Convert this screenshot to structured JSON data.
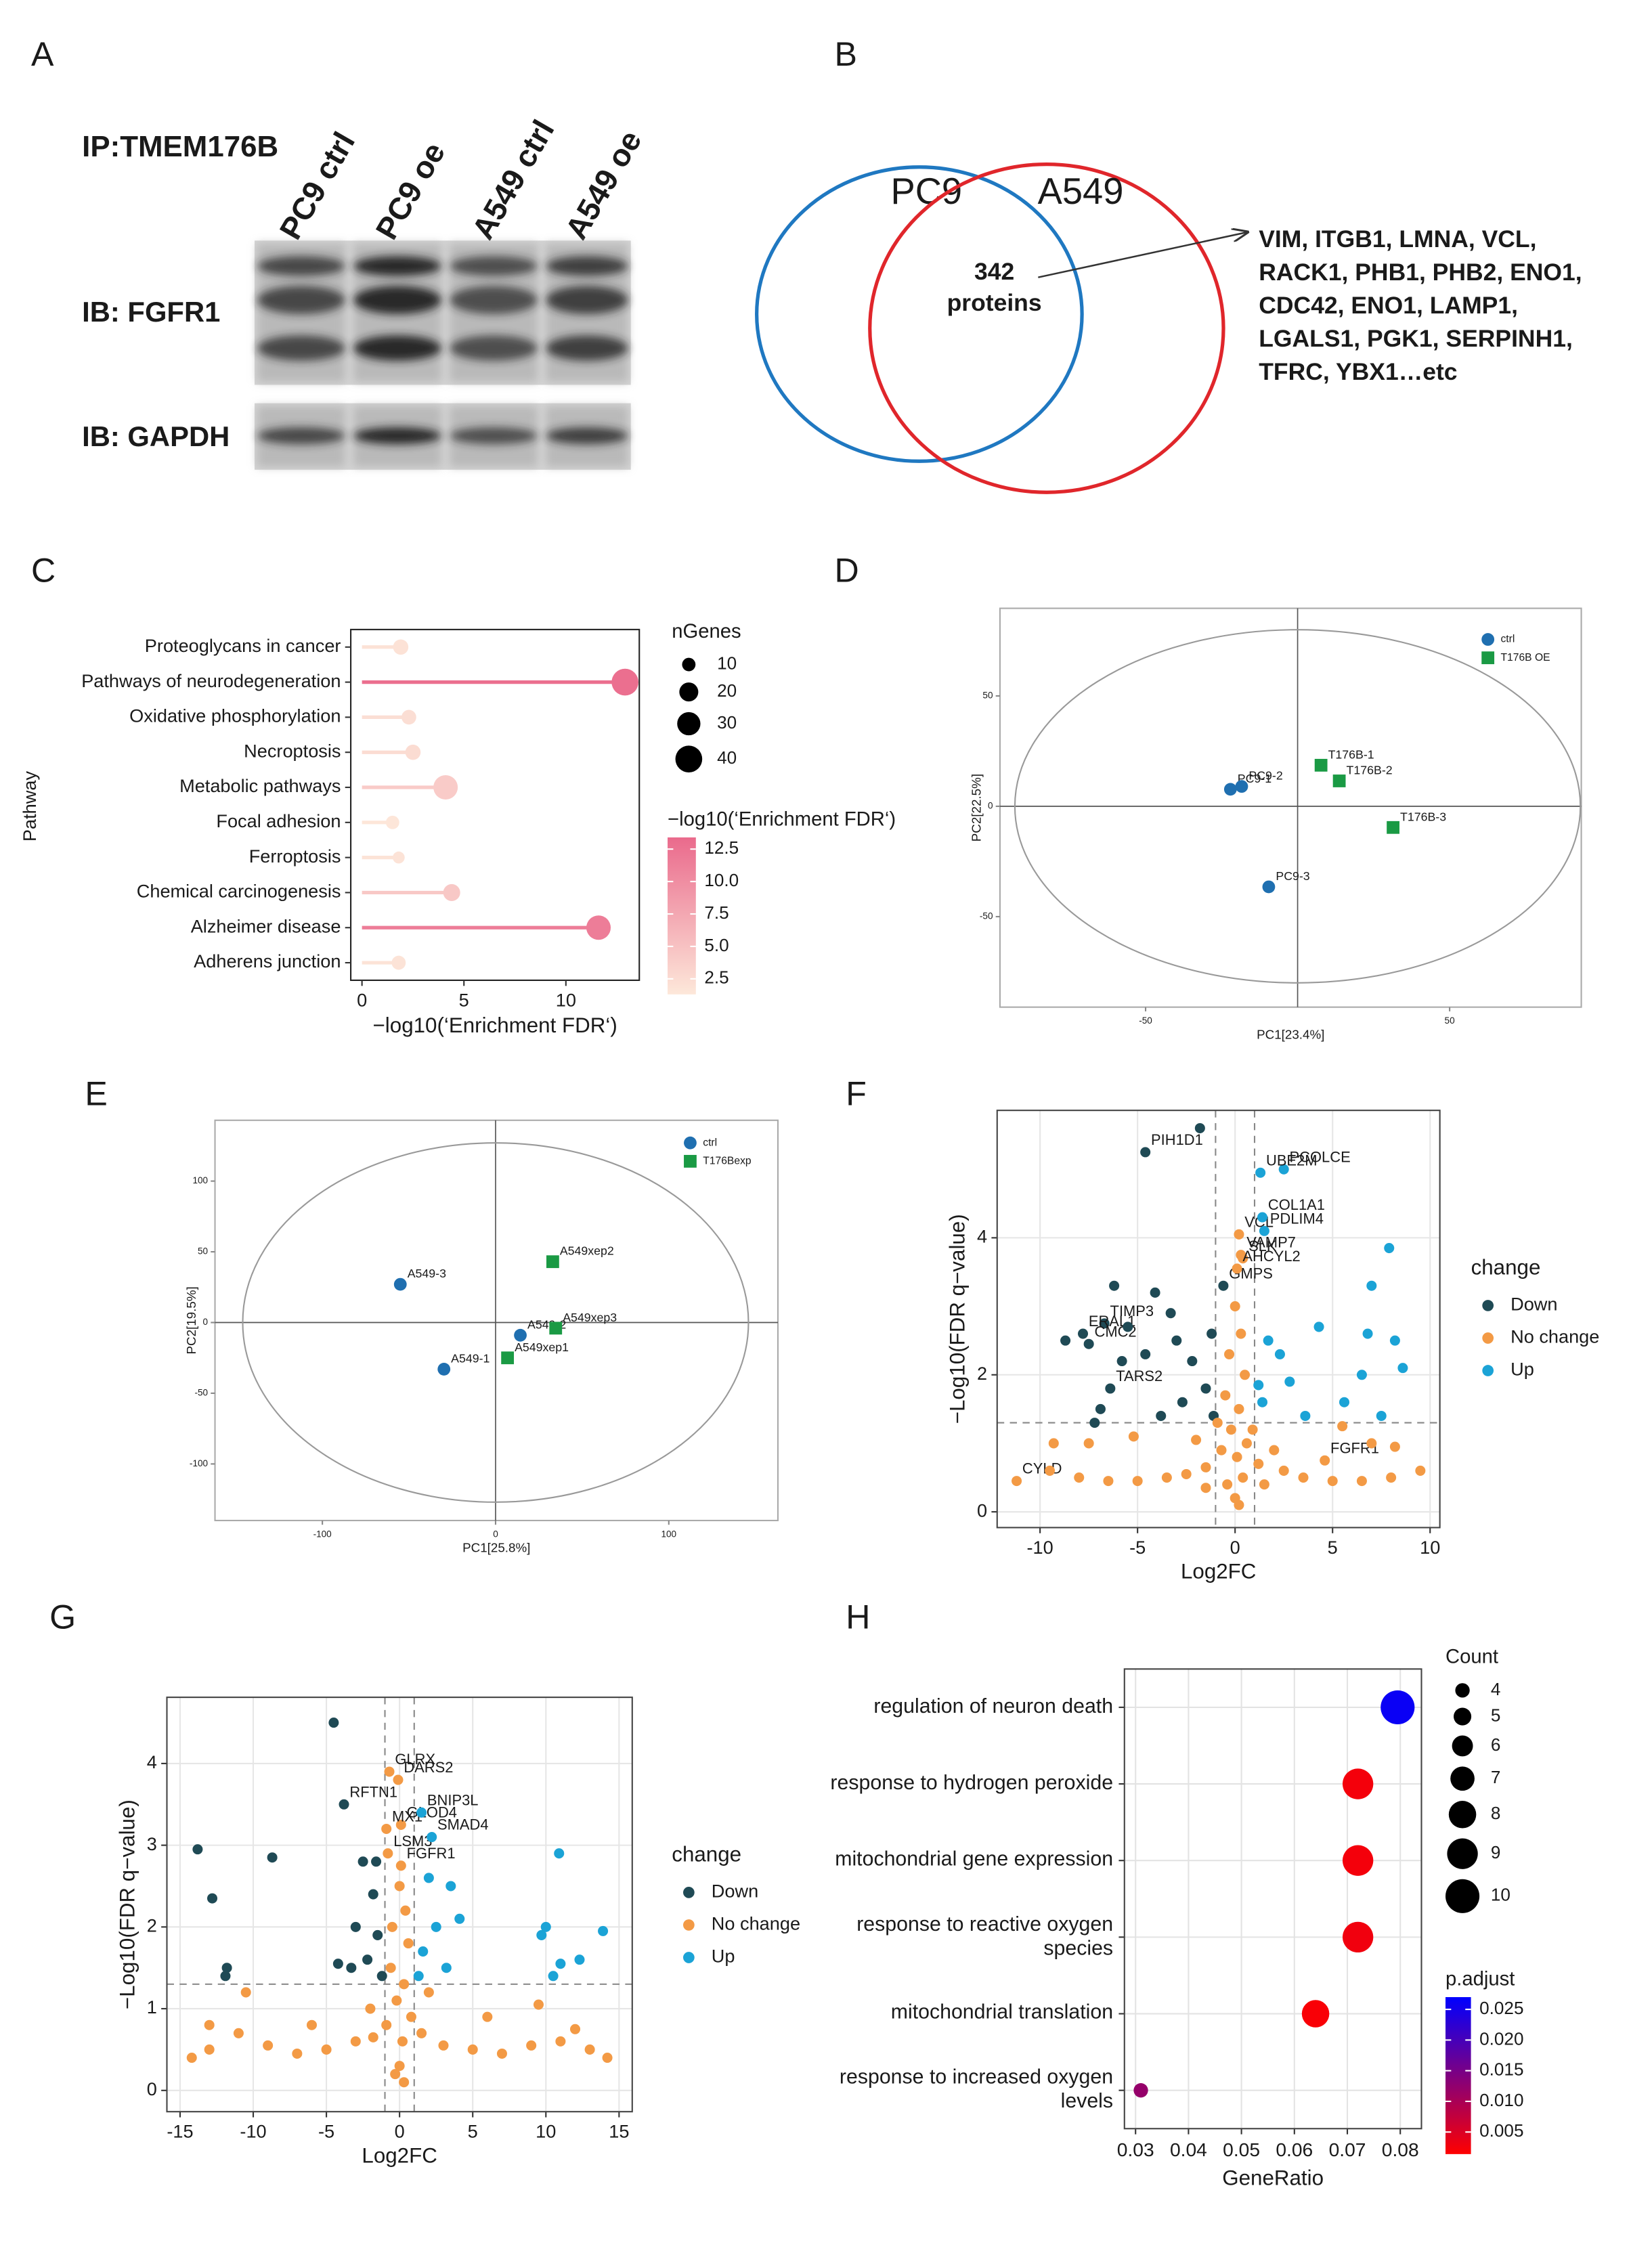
{
  "chart_data": [
    {
      "type": "blot",
      "panel": "A",
      "title": "IP:TMEM176B",
      "lanes": [
        "PC9 ctrl",
        "PC9 oe",
        "A549 ctrl",
        "A549 oe"
      ],
      "rows": [
        "IB: FGFR1",
        "IB: GAPDH"
      ]
    },
    {
      "type": "venn",
      "panel": "B",
      "sets": [
        {
          "name": "PC9",
          "color": "#1f78c1"
        },
        {
          "name": "A549",
          "color": "#e0262b"
        }
      ],
      "intersection": 342,
      "intersection_label": "proteins",
      "genes": [
        "VIM, ITGB1, LMNA, VCL,",
        "RACK1, PHB1, PHB2, ENO1,",
        "CDC42, ENO1, LAMP1,",
        "LGALS1, PGK1, SERPINH1,",
        "TFRC, YBX1…etc"
      ]
    },
    {
      "type": "lollipop",
      "panel": "C",
      "categories": [
        "Proteoglycans in cancer",
        "Pathways of neurodegeneration",
        "Oxidative phosphorylation",
        "Necroptosis",
        "Metabolic pathways",
        "Focal adhesion",
        "Ferroptosis",
        "Chemical carcinogenesis",
        "Alzheimer disease",
        "Adherens junction"
      ],
      "values": [
        1.9,
        12.9,
        2.3,
        2.5,
        4.1,
        1.5,
        1.8,
        4.4,
        11.6,
        1.8
      ],
      "sizes": [
        13,
        40,
        12,
        13,
        33,
        10,
        8,
        16,
        33,
        11
      ],
      "xlim": [
        -0.55,
        13.6
      ],
      "xticks": [
        0,
        5,
        10
      ],
      "x_label": "−log10(‘Enrichment FDR‘)",
      "y_label": "Pathway",
      "size_title": "nGenes",
      "size_legend": [
        10,
        20,
        30,
        40
      ],
      "color_title": "−log10(‘Enrichment FDR‘)",
      "colorscale": [
        "#fde8da",
        "#ea6a8c"
      ],
      "clim": [
        1.3,
        13.4
      ],
      "cticks": [
        12.5,
        {
          "value": 10,
          "label": "10.0"
        },
        7.5,
        {
          "value": 5,
          "label": "5.0"
        },
        2.5
      ]
    },
    {
      "type": "pca",
      "panel": "D",
      "x_label": "PC1[23.4%]",
      "y_label": "PC2[22.5%]",
      "xlim": [
        -97.9,
        93.3
      ],
      "ylim": [
        -91,
        89.7
      ],
      "xticks": [
        -50,
        50
      ],
      "yticks": [
        50,
        0,
        -50
      ],
      "ellipse": [
        0,
        0,
        93,
        80
      ],
      "series": [
        {
          "name": "ctrl",
          "color": "#1f6fb0",
          "marker": "circle",
          "x": [
            -22.1,
            -18.4,
            -9.5
          ],
          "values": [
            7.7,
            9,
            -36.5
          ],
          "labels": [
            "PC9-1",
            "PC9-2",
            "PC9-3"
          ]
        },
        {
          "name": "T176B OE",
          "color": "#1a9a44",
          "marker": "square",
          "x": [
            7.7,
            13.7,
            31.4
          ],
          "values": [
            18.6,
            11.5,
            -9.6
          ],
          "labels": [
            "T176B-1",
            "T176B-2",
            "T176B-3"
          ]
        }
      ]
    },
    {
      "type": "pca",
      "panel": "E",
      "x_label": "PC1[25.8%]",
      "y_label": "PC2[19.5%]",
      "xlim": [
        -162,
        163
      ],
      "ylim": [
        -140,
        143
      ],
      "xticks": [
        -100,
        0,
        100
      ],
      "yticks": [
        100,
        50,
        0,
        -50,
        -100
      ],
      "ellipse": [
        0,
        0,
        146,
        127
      ],
      "series": [
        {
          "name": "ctrl",
          "color": "#1f6fb0",
          "marker": "circle",
          "x": [
            -55,
            -29.8,
            14.3
          ],
          "values": [
            27,
            -33,
            -9
          ],
          "labels": [
            "A549-3",
            "A549-1",
            "A549-2"
          ]
        },
        {
          "name": "T176Bexp",
          "color": "#1a9a44",
          "marker": "square",
          "x": [
            6.9,
            33,
            34.7
          ],
          "values": [
            -25,
            43,
            -4
          ],
          "labels": [
            "A549xep1",
            "A549xep2",
            "A549xep3"
          ]
        }
      ]
    },
    {
      "type": "volcano",
      "panel": "F",
      "x_label": "Log2FC",
      "y_label": "−Log10(FDR q−value)",
      "xlim": [
        -12.2,
        10.5
      ],
      "ylim": [
        -0.23,
        5.86
      ],
      "xticks": [
        -10,
        -5,
        0,
        5,
        10
      ],
      "yticks": [
        0,
        2,
        4
      ],
      "thresholds": {
        "x": [
          -1,
          1
        ],
        "y": 1.3
      },
      "legend_title": "change",
      "series": [
        {
          "name": "Down",
          "color": "#1f4a55",
          "x": [
            -4.6,
            -1.8,
            -6.7,
            -7.8,
            -7.5,
            -6.4,
            -0.6,
            -6.2,
            -8.7,
            -5.5,
            -3.3,
            -3.0,
            -2.2,
            -1.5,
            -4.6,
            -2.7,
            -6.9,
            -5.8,
            -1.2,
            -3.8,
            -1.1,
            -4.1,
            -7.2
          ],
          "values": [
            5.25,
            5.6,
            2.75,
            2.6,
            2.45,
            1.8,
            3.3,
            3.3,
            2.5,
            2.7,
            2.9,
            2.5,
            2.2,
            1.8,
            2.3,
            1.6,
            1.5,
            2.2,
            2.6,
            1.4,
            1.4,
            3.2,
            1.3
          ],
          "labels": [
            "PIH1D1",
            null,
            "TIMP3",
            "ERAL1",
            "CMC2",
            "TARS2",
            "GMPS",
            null,
            null,
            null,
            null,
            null,
            null,
            null,
            null,
            null,
            null,
            null,
            null,
            null,
            null,
            null,
            null
          ]
        },
        {
          "name": "No change",
          "color": "#f39a45",
          "x": [
            0.2,
            0.3,
            0.4,
            0.1,
            4.6,
            -11.2,
            0,
            0.3,
            -0.3,
            0.5,
            -0.5,
            0.2,
            -0.2,
            0.6,
            -0.7,
            0.1,
            1.2,
            -1.5,
            2.5,
            -2.5,
            3.5,
            -3.5,
            5,
            -5,
            6.5,
            -6.5,
            8,
            -8,
            9.5,
            -9.5,
            7,
            -7.5,
            5.5,
            -5.2,
            8.2,
            -9.3,
            2,
            -2,
            0.9,
            -0.9,
            0.4,
            -0.4,
            1.5,
            -1.5,
            0,
            0.2
          ],
          "values": [
            4.05,
            3.75,
            3.7,
            3.55,
            0.75,
            0.45,
            3.0,
            2.6,
            2.3,
            2.0,
            1.7,
            1.5,
            1.2,
            1.0,
            0.9,
            0.8,
            0.7,
            0.65,
            0.6,
            0.55,
            0.5,
            0.5,
            0.45,
            0.45,
            0.45,
            0.45,
            0.5,
            0.5,
            0.6,
            0.6,
            1.0,
            1.0,
            1.25,
            1.1,
            0.95,
            1.0,
            0.9,
            1.05,
            1.2,
            1.3,
            0.5,
            0.4,
            0.4,
            0.35,
            0.2,
            0.1
          ],
          "labels": [
            "VCL",
            "VAMP7",
            "SLK",
            "AHCYL2",
            "FGFR1",
            "CYLD",
            null,
            null,
            null,
            null,
            null,
            null,
            null,
            null,
            null,
            null,
            null,
            null,
            null,
            null,
            null,
            null,
            null,
            null,
            null,
            null,
            null,
            null,
            null,
            null,
            null,
            null,
            null,
            null,
            null,
            null,
            null,
            null,
            null,
            null,
            null,
            null,
            null,
            null,
            null,
            null
          ]
        },
        {
          "name": "Up",
          "color": "#1ba3d6",
          "x": [
            2.5,
            1.3,
            1.4,
            1.5,
            7.9,
            7.0,
            4.3,
            6.8,
            8.2,
            8.6,
            2.3,
            1.7,
            2.8,
            1.4,
            3.6,
            6.5,
            5.6,
            7.5,
            1.2
          ],
          "values": [
            5.0,
            4.95,
            4.3,
            4.1,
            3.85,
            3.3,
            2.7,
            2.6,
            2.5,
            2.1,
            2.3,
            2.5,
            1.9,
            1.6,
            1.4,
            2.0,
            1.6,
            1.4,
            1.85
          ],
          "labels": [
            "PCOLCE",
            "UBE2M",
            "COL1A1",
            "PDLIM4",
            null,
            null,
            null,
            null,
            null,
            null,
            null,
            null,
            null,
            null,
            null,
            null,
            null,
            null,
            null
          ]
        }
      ]
    },
    {
      "type": "volcano",
      "panel": "G",
      "x_label": "Log2FC",
      "y_label": "−Log10(FDR q−value)",
      "xlim": [
        -15.9,
        15.9
      ],
      "ylim": [
        -0.26,
        4.81
      ],
      "xticks": [
        -15,
        -10,
        -5,
        0,
        5,
        10,
        15
      ],
      "yticks": [
        0,
        1,
        2,
        3,
        4
      ],
      "thresholds": {
        "x": [
          -1,
          1
        ],
        "y": 1.3
      },
      "legend_title": "change",
      "series": [
        {
          "name": "Down",
          "color": "#1f4a55",
          "x": [
            -4.5,
            -3.8,
            -13.8,
            -12.8,
            -8.7,
            -11.8,
            -11.9,
            -2.5,
            -1.8,
            -3.0,
            -1.5,
            -2.2,
            -4.2,
            -1.2,
            -3.3,
            -1.6
          ],
          "values": [
            4.5,
            3.5,
            2.95,
            2.35,
            2.85,
            1.5,
            1.4,
            2.8,
            2.4,
            2.0,
            1.9,
            1.6,
            1.55,
            1.4,
            1.5,
            2.8
          ],
          "labels": [
            null,
            "RFTN1",
            null,
            null,
            null,
            null,
            null,
            null,
            null,
            null,
            null,
            null,
            null,
            null,
            null,
            null
          ]
        },
        {
          "name": "No change",
          "color": "#f39a45",
          "x": [
            -0.7,
            -0.1,
            0.1,
            -0.9,
            -0.8,
            0.1,
            0,
            0.4,
            -0.5,
            0.6,
            -0.6,
            0.3,
            -0.2,
            0.8,
            -0.9,
            0.2,
            1.5,
            -1.8,
            3,
            -3,
            5,
            -5,
            7,
            -7,
            9,
            -9,
            11,
            -11,
            13,
            -13,
            14.2,
            -14.2,
            -10.5,
            -13,
            9.5,
            12,
            -6,
            6,
            0,
            0.3,
            -0.3,
            2,
            -2
          ],
          "values": [
            3.9,
            3.8,
            3.25,
            3.2,
            2.9,
            2.75,
            2.5,
            2.2,
            2.0,
            1.8,
            1.5,
            1.3,
            1.1,
            0.9,
            0.8,
            0.6,
            0.7,
            0.65,
            0.55,
            0.6,
            0.5,
            0.5,
            0.45,
            0.45,
            0.55,
            0.55,
            0.6,
            0.7,
            0.5,
            0.5,
            0.4,
            0.4,
            1.2,
            0.8,
            1.05,
            0.75,
            0.8,
            0.9,
            0.3,
            0.1,
            0.2,
            1.2,
            1.0
          ],
          "labels": [
            "GLRX",
            "DARS2",
            "GLOD4",
            "MX1",
            "LSM3",
            "FGFR1",
            null,
            null,
            null,
            null,
            null,
            null,
            null,
            null,
            null,
            null,
            null,
            null,
            null,
            null,
            null,
            null,
            null,
            null,
            null,
            null,
            null,
            null,
            null,
            null,
            null,
            null,
            null,
            null,
            null,
            null,
            null,
            null,
            null,
            null,
            null,
            null,
            null
          ]
        },
        {
          "name": "Up",
          "color": "#1ba3d6",
          "x": [
            1.5,
            2.2,
            10.9,
            13.9,
            10,
            11,
            9.7,
            12.3,
            3.5,
            2.5,
            1.6,
            3.2,
            4.1,
            2.0,
            1.3,
            10.5
          ],
          "values": [
            3.4,
            3.1,
            2.9,
            1.95,
            2.0,
            1.55,
            1.9,
            1.6,
            2.5,
            2.0,
            1.7,
            1.5,
            2.1,
            2.6,
            1.4,
            1.4
          ],
          "labels": [
            "BNIP3L",
            "SMAD4",
            null,
            null,
            null,
            null,
            null,
            null,
            null,
            null,
            null,
            null,
            null,
            null,
            null,
            null
          ]
        }
      ]
    },
    {
      "type": "dot",
      "panel": "H",
      "categories": [
        "regulation of neuron death",
        "response to hydrogen peroxide",
        "mitochondrial gene expression",
        "response to reactive oxygen species",
        "mitochondrial translation",
        "response to increased oxygen levels"
      ],
      "values": [
        0.0795,
        0.072,
        0.072,
        0.072,
        0.064,
        0.031
      ],
      "sizes": [
        10,
        9,
        9,
        9,
        8,
        4
      ],
      "color_values": [
        0.026,
        0.0025,
        0.0025,
        0.0028,
        0.002,
        0.012
      ],
      "xlim": [
        0.0279,
        0.084
      ],
      "xticks": [
        0.03,
        0.04,
        0.05,
        0.06,
        0.07,
        0.08
      ],
      "x_label": "GeneRatio",
      "grid": true,
      "size_title": "Count",
      "size_legend": [
        4,
        5,
        6,
        7,
        8,
        9,
        10
      ],
      "color_title": "p.adjust",
      "colorscale": [
        "#ff0000",
        "#0000ff"
      ],
      "clim": [
        0.0014,
        0.027
      ],
      "cticks": [
        0.025,
        {
          "value": 0.02,
          "label": "0.020"
        },
        0.015,
        {
          "value": 0.01,
          "label": "0.010"
        },
        0.005
      ]
    }
  ]
}
